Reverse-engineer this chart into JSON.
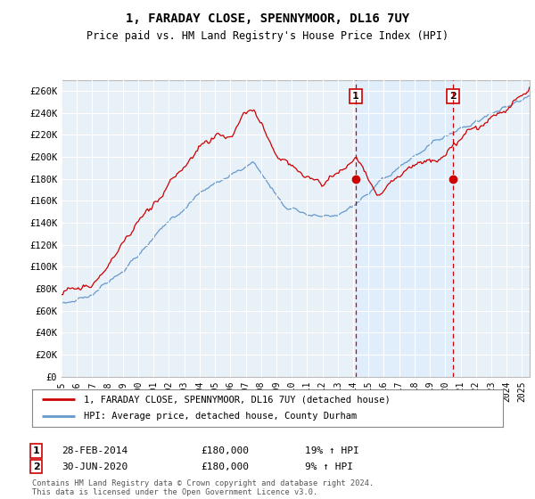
{
  "title": "1, FARADAY CLOSE, SPENNYMOOR, DL16 7UY",
  "subtitle": "Price paid vs. HM Land Registry's House Price Index (HPI)",
  "legend_line1": "1, FARADAY CLOSE, SPENNYMOOR, DL16 7UY (detached house)",
  "legend_line2": "HPI: Average price, detached house, County Durham",
  "footer": "Contains HM Land Registry data © Crown copyright and database right 2024.\nThis data is licensed under the Open Government Licence v3.0.",
  "annotation1": {
    "num": "1",
    "date": "28-FEB-2014",
    "price": "£180,000",
    "hpi": "19% ↑ HPI",
    "x_year": 2014.17
  },
  "annotation2": {
    "num": "2",
    "date": "30-JUN-2020",
    "price": "£180,000",
    "hpi": "9% ↑ HPI",
    "x_year": 2020.5
  },
  "ylim": [
    0,
    270000
  ],
  "xlim_start": 1995,
  "xlim_end": 2025.5,
  "yticks": [
    0,
    20000,
    40000,
    60000,
    80000,
    100000,
    120000,
    140000,
    160000,
    180000,
    200000,
    220000,
    240000,
    260000
  ],
  "ytick_labels": [
    "£0",
    "£20K",
    "£40K",
    "£60K",
    "£80K",
    "£100K",
    "£120K",
    "£140K",
    "£160K",
    "£180K",
    "£200K",
    "£220K",
    "£240K",
    "£260K"
  ],
  "red_color": "#cc0000",
  "blue_color": "#6699cc",
  "shade_color": "#ddeeff",
  "background_plot": "#e8f0f8",
  "background_fig": "#ffffff",
  "vline_color": "#cc0000",
  "grid_color": "#ffffff"
}
